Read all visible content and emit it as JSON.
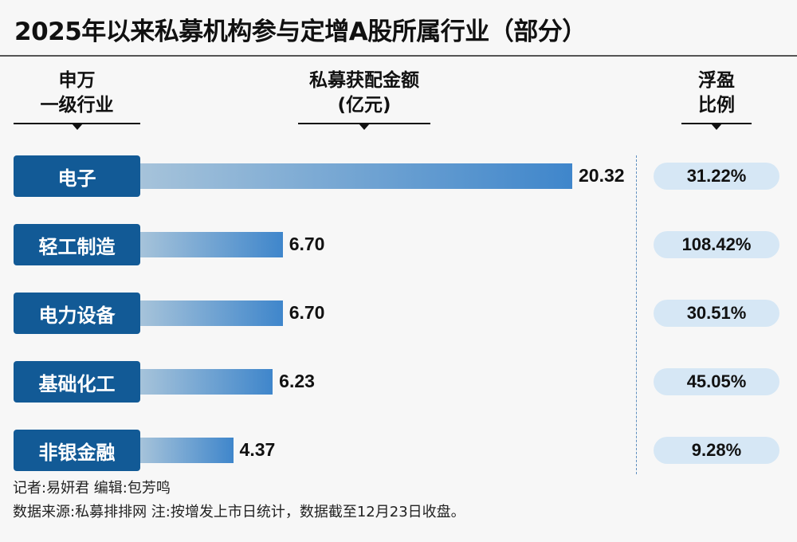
{
  "title": "2025年以来私募机构参与定增A股所属行业（部分）",
  "headers": {
    "industry": [
      "申万",
      "一级行业"
    ],
    "amount": [
      "私募获配金额",
      "(亿元)"
    ],
    "ratio": [
      "浮盈",
      "比例"
    ]
  },
  "chart_data": {
    "type": "bar",
    "title": "2025年以来私募机构参与定增A股所属行业（部分）",
    "xlabel": "私募获配金额(亿元)",
    "categories": [
      "电子",
      "轻工制造",
      "电力设备",
      "基础化工",
      "非银金融"
    ],
    "values": [
      20.32,
      6.7,
      6.7,
      6.23,
      4.37
    ],
    "value_labels": [
      "20.32",
      "6.70",
      "6.70",
      "6.23",
      "4.37"
    ],
    "float_profit_ratio": [
      "31.22%",
      "108.42%",
      "30.51%",
      "45.05%",
      "9.28%"
    ],
    "xlim": [
      0,
      20.32
    ]
  },
  "footer": {
    "line1": "记者:易妍君   编辑:包芳鸣",
    "line2": "数据来源:私募排排网   注:按增发上市日统计，数据截至12月23日收盘。"
  }
}
